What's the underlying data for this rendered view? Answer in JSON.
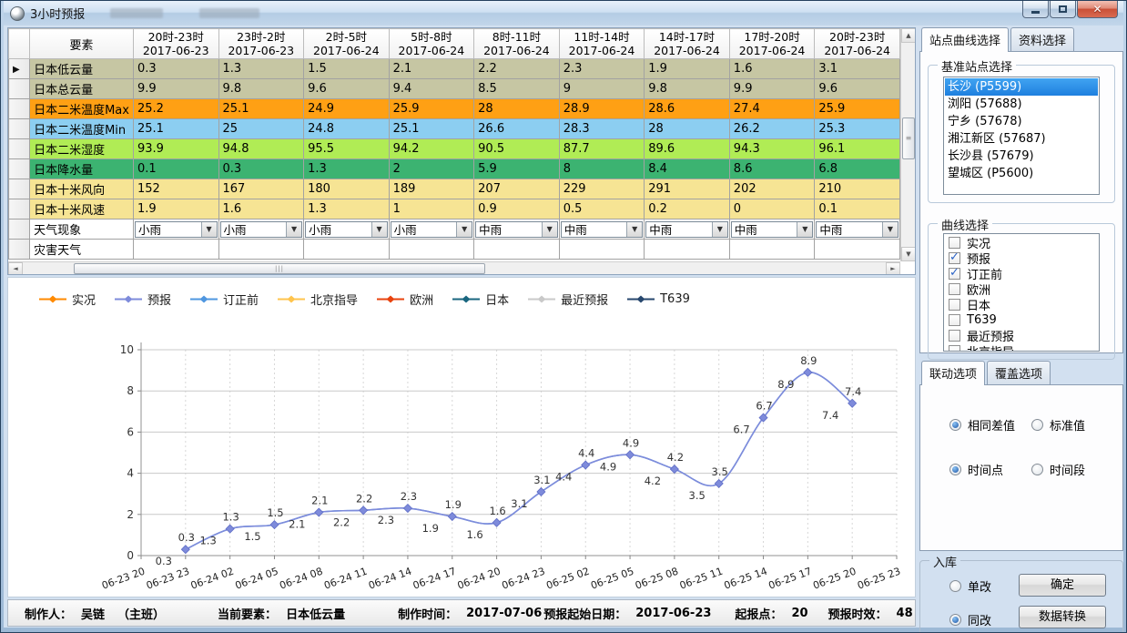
{
  "window": {
    "title": "3小时预报"
  },
  "table": {
    "corner_label": "要素",
    "columns": [
      {
        "time": "20时-23时",
        "date": "2017-06-23"
      },
      {
        "time": "23时-2时",
        "date": "2017-06-23"
      },
      {
        "time": "2时-5时",
        "date": "2017-06-24"
      },
      {
        "time": "5时-8时",
        "date": "2017-06-24"
      },
      {
        "time": "8时-11时",
        "date": "2017-06-24"
      },
      {
        "time": "11时-14时",
        "date": "2017-06-24"
      },
      {
        "time": "14时-17时",
        "date": "2017-06-24"
      },
      {
        "time": "17时-20时",
        "date": "2017-06-24"
      },
      {
        "time": "20时-23时",
        "date": "2017-06-24"
      }
    ],
    "rows": [
      {
        "label": "日本低云量",
        "color": "#c6c6a3",
        "values": [
          "0.3",
          "1.3",
          "1.5",
          "2.1",
          "2.2",
          "2.3",
          "1.9",
          "1.6",
          "3.1"
        ]
      },
      {
        "label": "日本总云量",
        "color": "#c6c6a3",
        "values": [
          "9.9",
          "9.8",
          "9.6",
          "9.4",
          "8.5",
          "9",
          "9.8",
          "9.9",
          "9.6"
        ]
      },
      {
        "label": "日本二米温度Max",
        "color": "#ffa014",
        "values": [
          "25.2",
          "25.1",
          "24.9",
          "25.9",
          "28",
          "28.9",
          "28.6",
          "27.4",
          "25.9"
        ]
      },
      {
        "label": "日本二米温度Min",
        "color": "#8ccef1",
        "values": [
          "25.1",
          "25",
          "24.8",
          "25.1",
          "26.6",
          "28.3",
          "28",
          "26.2",
          "25.3"
        ]
      },
      {
        "label": "日本二米湿度",
        "color": "#b0ec55",
        "values": [
          "93.9",
          "94.8",
          "95.5",
          "94.2",
          "90.5",
          "87.7",
          "89.6",
          "94.3",
          "96.1"
        ]
      },
      {
        "label": "日本降水量",
        "color": "#3cb371",
        "values": [
          "0.1",
          "0.3",
          "1.3",
          "2",
          "5.9",
          "8",
          "8.4",
          "8.6",
          "6.8"
        ]
      },
      {
        "label": "日本十米风向",
        "color": "#f6e494",
        "values": [
          "152",
          "167",
          "180",
          "189",
          "207",
          "229",
          "291",
          "202",
          "210"
        ]
      },
      {
        "label": "日本十米风速",
        "color": "#f6e494",
        "values": [
          "1.9",
          "1.6",
          "1.3",
          "1",
          "0.9",
          "0.5",
          "0.2",
          "0",
          "0.1"
        ]
      }
    ],
    "weather_row": {
      "label": "天气现象",
      "values": [
        "小雨",
        "小雨",
        "小雨",
        "小雨",
        "中雨",
        "中雨",
        "中雨",
        "中雨",
        "中雨"
      ]
    },
    "disaster_row": {
      "label": "灾害天气"
    }
  },
  "sidebar": {
    "tabs1": [
      "站点曲线选择",
      "资料选择"
    ],
    "station_group_label": "基准站点选择",
    "stations": [
      {
        "name": "长沙 (P5599)",
        "selected": true
      },
      {
        "name": "浏阳 (57688)",
        "selected": false
      },
      {
        "name": "宁乡 (57678)",
        "selected": false
      },
      {
        "name": "湘江新区 (57687)",
        "selected": false
      },
      {
        "name": "长沙县 (57679)",
        "selected": false
      },
      {
        "name": "望城区 (P5600)",
        "selected": false
      }
    ],
    "curve_group_label": "曲线选择",
    "curves": [
      {
        "label": "实况",
        "checked": false
      },
      {
        "label": "预报",
        "checked": true
      },
      {
        "label": "订正前",
        "checked": true
      },
      {
        "label": "欧洲",
        "checked": false
      },
      {
        "label": "日本",
        "checked": false
      },
      {
        "label": "T639",
        "checked": false
      },
      {
        "label": "最近预报",
        "checked": false
      },
      {
        "label": "北京指导",
        "checked": false
      }
    ],
    "tabs2": [
      "联动选项",
      "覆盖选项"
    ],
    "linkage_radios": [
      {
        "label": "相同差值",
        "checked": true
      },
      {
        "label": "标准值",
        "checked": false
      },
      {
        "label": "时间点",
        "checked": true
      },
      {
        "label": "时间段",
        "checked": false
      }
    ],
    "store_group_label": "入库",
    "store_radios": [
      {
        "label": "单改",
        "checked": false
      },
      {
        "label": "同改",
        "checked": true
      }
    ],
    "buttons": [
      {
        "label": "确定"
      },
      {
        "label": "数据转换"
      }
    ]
  },
  "chart_data": {
    "type": "line",
    "title": "",
    "xlabel": "",
    "ylabel": "",
    "ylim": [
      0,
      10
    ],
    "yticks": [
      0,
      2,
      4,
      6,
      8,
      10
    ],
    "grid": true,
    "legend_position": "top",
    "x": [
      "06-23 20",
      "06-23 23",
      "06-24 02",
      "06-24 05",
      "06-24 08",
      "06-24 11",
      "06-24 14",
      "06-24 17",
      "06-24 20",
      "06-24 23",
      "06-25 02",
      "06-25 05",
      "06-25 08",
      "06-25 11",
      "06-25 14",
      "06-25 17",
      "06-25 20",
      "06-25 23"
    ],
    "series": [
      {
        "name": "订正前",
        "color": "#4f97e0",
        "values": [
          null,
          0.3,
          1.3,
          1.5,
          2.1,
          2.2,
          2.3,
          1.9,
          1.6,
          3.1,
          4.4,
          4.9,
          4.2,
          3.5,
          6.7,
          8.9,
          7.4,
          null
        ]
      },
      {
        "name": "预报",
        "color": "#7e8bdb",
        "values": [
          null,
          0.3,
          1.3,
          1.5,
          2.1,
          2.2,
          2.3,
          1.9,
          1.6,
          3.1,
          4.4,
          4.9,
          4.2,
          3.5,
          6.7,
          8.9,
          7.4,
          null
        ]
      }
    ],
    "legend": [
      {
        "label": "实况",
        "color": "#ff8a00"
      },
      {
        "label": "预报",
        "color": "#7e8bdb"
      },
      {
        "label": "订正前",
        "color": "#4f97e0"
      },
      {
        "label": "北京指导",
        "color": "#ffc44d"
      },
      {
        "label": "欧洲",
        "color": "#e8430e"
      },
      {
        "label": "日本",
        "color": "#19667f"
      },
      {
        "label": "最近预报",
        "color": "#c9c9c9"
      },
      {
        "label": "T639",
        "color": "#27476e"
      }
    ]
  },
  "statusbar": {
    "maker_label": "制作人：",
    "maker": "吴链",
    "maker_role": "（主班）",
    "element_label": "当前要素：",
    "element": "日本低云量",
    "time_label": "制作时间：",
    "time": "2017-07-06",
    "start_label": "预报起始日期：",
    "start": "2017-06-23",
    "point_label": "起报点：",
    "point": "20",
    "validity_label": "预报时效：",
    "validity": "48"
  }
}
